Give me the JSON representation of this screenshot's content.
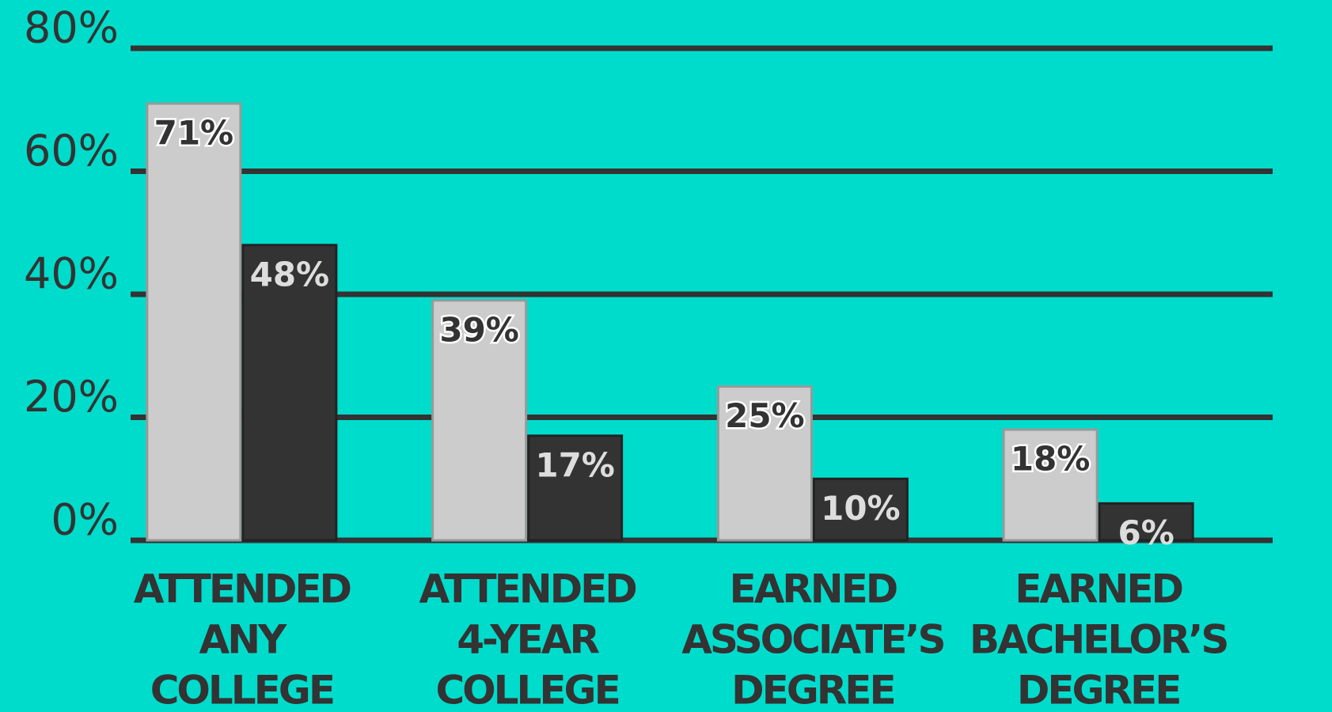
{
  "chart_data": {
    "type": "bar",
    "categories": [
      [
        "ATTENDED",
        "ANY",
        "COLLEGE"
      ],
      [
        "ATTENDED",
        "4-YEAR",
        "COLLEGE"
      ],
      [
        "EARNED",
        "ASSOCIATE’S",
        "DEGREE"
      ],
      [
        "EARNED",
        "BACHELOR’S",
        "DEGREE"
      ]
    ],
    "series": [
      {
        "color": "#cccccc",
        "values": [
          71,
          39,
          25,
          18
        ],
        "value_labels": [
          "71%",
          "39%",
          "25%",
          "18%"
        ]
      },
      {
        "color": "#333333",
        "values": [
          48,
          17,
          10,
          6
        ],
        "value_labels": [
          "48%",
          "17%",
          "10%",
          "6%"
        ]
      }
    ],
    "ylim": [
      0,
      80
    ],
    "yticks": [
      {
        "value": 0,
        "label": "0%"
      },
      {
        "value": 20,
        "label": "20%"
      },
      {
        "value": 40,
        "label": "40%"
      },
      {
        "value": 60,
        "label": "60%"
      },
      {
        "value": 80,
        "label": "80%"
      }
    ],
    "grid": true
  }
}
